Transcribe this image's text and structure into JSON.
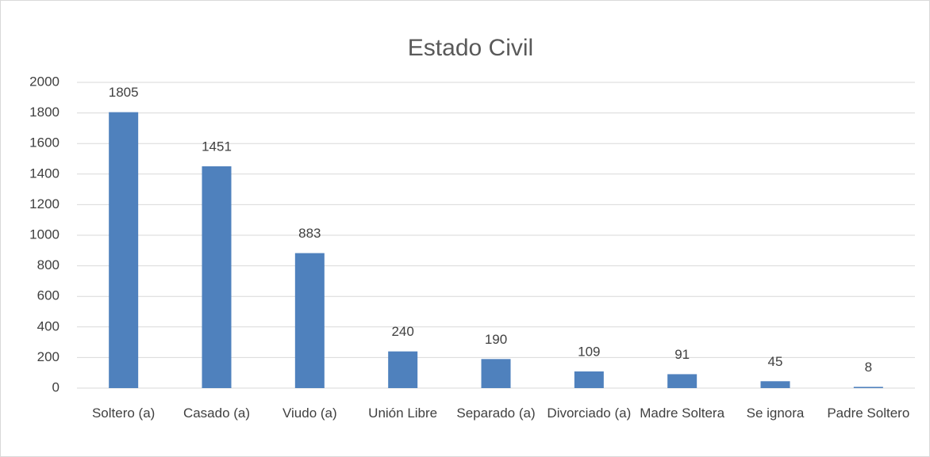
{
  "chart_data": {
    "type": "bar",
    "title": "Estado Civil",
    "categories": [
      "Soltero (a)",
      "Casado (a)",
      "Viudo (a)",
      "Unión Libre",
      "Separado (a)",
      "Divorciado (a)",
      "Madre Soltera",
      "Se ignora",
      "Padre Soltero"
    ],
    "values": [
      1805,
      1451,
      883,
      240,
      190,
      109,
      91,
      45,
      8
    ],
    "color": "#4f81bd",
    "ylim": [
      0,
      2000
    ],
    "yticks": [
      0,
      200,
      400,
      600,
      800,
      1000,
      1200,
      1400,
      1600,
      1800,
      2000
    ],
    "grid": true
  }
}
